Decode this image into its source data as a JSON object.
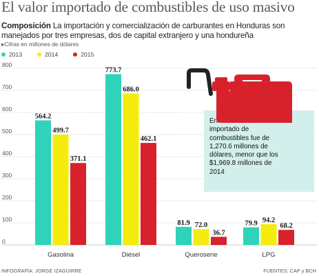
{
  "headline": "El valor importado de combustibles de uso masivo",
  "deck": {
    "lead": "Composición",
    "text": " La importación y comercialización de carburantes en Honduras son manejados por tres empresas, dos de capital extranjero y una hondureña"
  },
  "unit_note": "▸Cifras en millones de dólares",
  "callout": {
    "text": "En 2015 el valor importado de combustibles fue de 1,270.6 millones de dólares, menor que los $1,969.8 millones de 2014",
    "icon": "fuel-can-icon",
    "color": "#d8222b"
  },
  "credits": {
    "left": "INFOGRAFÍA: JORGE IZAGUIRRE",
    "right": "FUENTES: CAP y BCH"
  },
  "chart_data": {
    "type": "bar",
    "categories": [
      "Gasolina",
      "Diésel",
      "Querosene",
      "LPG"
    ],
    "series": [
      {
        "name": "2013",
        "color": "#2fd3b9",
        "values": [
          564.2,
          773.7,
          81.9,
          79.9
        ],
        "labels": [
          "564.2",
          "773.7",
          "81.9",
          "79.9"
        ]
      },
      {
        "name": "2014",
        "color": "#f4ec0d",
        "values": [
          499.7,
          686.0,
          72.0,
          94.2
        ],
        "labels": [
          "499.7",
          "686.0",
          "72.0",
          "94.2"
        ]
      },
      {
        "name": "2015",
        "color": "#d8222b",
        "values": [
          371.1,
          462.1,
          36.7,
          68.2
        ],
        "labels": [
          "371.1",
          "462.1",
          "36.7",
          "68.2"
        ]
      }
    ],
    "ylim": [
      0,
      800
    ],
    "yticks": [
      "0",
      "100",
      "200",
      "300",
      "400",
      "500",
      "600",
      "700",
      "800"
    ],
    "ytick_values": [
      0,
      100,
      200,
      300,
      400,
      500,
      600,
      700,
      800
    ],
    "grid": true,
    "legend_position": "top-left"
  }
}
